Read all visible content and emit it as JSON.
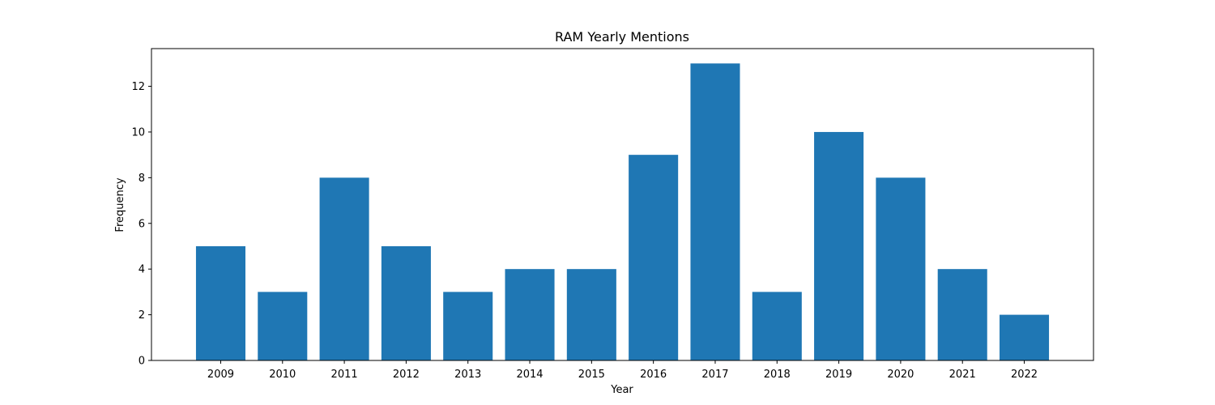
{
  "chart_data": {
    "type": "bar",
    "title": "RAM Yearly Mentions",
    "xlabel": "Year",
    "ylabel": "Frequency",
    "categories": [
      "2009",
      "2010",
      "2011",
      "2012",
      "2013",
      "2014",
      "2015",
      "2016",
      "2017",
      "2018",
      "2019",
      "2020",
      "2021",
      "2022"
    ],
    "values": [
      5,
      3,
      8,
      5,
      3,
      4,
      4,
      9,
      13,
      3,
      10,
      8,
      4,
      2
    ],
    "ylim": [
      0,
      13.65
    ],
    "yticks": [
      0,
      2,
      4,
      6,
      8,
      10,
      12
    ],
    "bar_color": "#1f77b4",
    "grid": false,
    "legend": "none"
  }
}
